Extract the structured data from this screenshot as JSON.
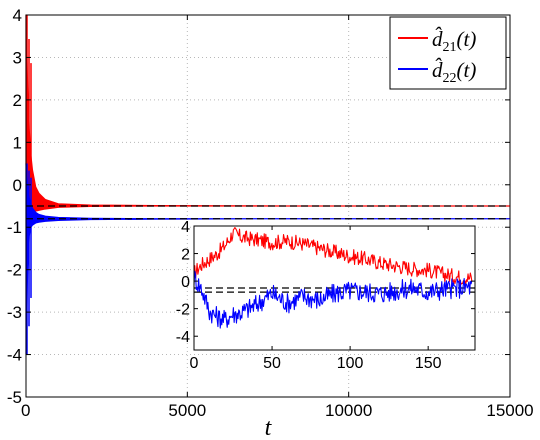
{
  "chart_data": [
    {
      "type": "line",
      "xlabel": "t",
      "ylabel": "",
      "xlim": [
        0,
        15000
      ],
      "ylim": [
        -5,
        4
      ],
      "xticks": [
        0,
        5000,
        10000,
        15000
      ],
      "yticks": [
        -5,
        -4,
        -3,
        -2,
        -1,
        0,
        1,
        2,
        3,
        4
      ],
      "grid": true,
      "legend_position": "top-right",
      "series": [
        {
          "name": "d̂21(t)",
          "color": "#ff0000",
          "x": [
            0,
            50,
            100,
            150,
            200,
            300,
            400,
            600,
            1000,
            2000,
            4000,
            8000,
            15000
          ],
          "y_upper": [
            4.0,
            2.3,
            1.3,
            0.7,
            0.35,
            -0.05,
            -0.2,
            -0.35,
            -0.45,
            -0.48,
            -0.49,
            -0.5,
            -0.5
          ],
          "y_lower": [
            0.5,
            -0.4,
            -0.6,
            -0.65,
            -0.65,
            -0.62,
            -0.6,
            -0.57,
            -0.53,
            -0.51,
            -0.5,
            -0.5,
            -0.5
          ]
        },
        {
          "name": "d̂22(t)",
          "color": "#0000ff",
          "x": [
            0,
            50,
            100,
            150,
            200,
            300,
            400,
            600,
            1000,
            2000,
            4000,
            8000,
            15000
          ],
          "y_upper": [
            0.5,
            0.0,
            -0.3,
            -0.45,
            -0.55,
            -0.65,
            -0.7,
            -0.74,
            -0.77,
            -0.79,
            -0.8,
            -0.8,
            -0.8
          ],
          "y_lower": [
            -4.0,
            -2.0,
            -1.2,
            -1.0,
            -0.95,
            -0.9,
            -0.88,
            -0.86,
            -0.84,
            -0.82,
            -0.81,
            -0.8,
            -0.8
          ]
        }
      ],
      "reference_lines": [
        {
          "y": -0.5,
          "style": "dashed",
          "color": "#000000"
        },
        {
          "y": -0.8,
          "style": "dashed",
          "color": "#000000"
        }
      ]
    },
    {
      "type": "line",
      "placement": "inset",
      "xlabel": "",
      "ylabel": "",
      "xlim": [
        0,
        180
      ],
      "ylim": [
        -5,
        4
      ],
      "xticks": [
        0,
        50,
        100,
        150
      ],
      "yticks": [
        -4,
        -2,
        0,
        2,
        4
      ],
      "grid": false,
      "series": [
        {
          "name": "d̂21(t)",
          "color": "#ff0000",
          "x": [
            0,
            5,
            10,
            15,
            20,
            25,
            30,
            40,
            50,
            60,
            70,
            80,
            90,
            100,
            110,
            120,
            130,
            140,
            150,
            160,
            170,
            178
          ],
          "y": [
            0.6,
            1.2,
            1.6,
            2.0,
            2.6,
            3.5,
            3.2,
            3.0,
            2.8,
            2.9,
            2.7,
            2.4,
            2.1,
            1.8,
            1.6,
            1.3,
            1.1,
            0.9,
            0.8,
            0.5,
            0.3,
            0.2
          ]
        },
        {
          "name": "d̂22(t)",
          "color": "#0000ff",
          "x": [
            0,
            5,
            10,
            15,
            20,
            25,
            30,
            40,
            50,
            60,
            70,
            80,
            90,
            100,
            110,
            120,
            130,
            140,
            150,
            160,
            170,
            178
          ],
          "y": [
            0.3,
            -0.6,
            -2.2,
            -2.6,
            -2.8,
            -2.4,
            -2.3,
            -1.7,
            -0.9,
            -1.6,
            -1.1,
            -1.4,
            -0.9,
            -0.7,
            -0.8,
            -0.9,
            -0.7,
            -0.5,
            -0.8,
            -0.6,
            -0.5,
            -0.4
          ]
        }
      ],
      "reference_lines": [
        {
          "y": -0.5,
          "style": "dashed",
          "color": "#000000"
        },
        {
          "y": -0.8,
          "style": "dashed",
          "color": "#000000"
        }
      ]
    }
  ],
  "legend": {
    "entries": [
      {
        "base": "d̂",
        "sub": "21",
        "arg": "(t)",
        "color": "#ff0000"
      },
      {
        "base": "d̂",
        "sub": "22",
        "arg": "(t)",
        "color": "#0000ff"
      }
    ]
  }
}
